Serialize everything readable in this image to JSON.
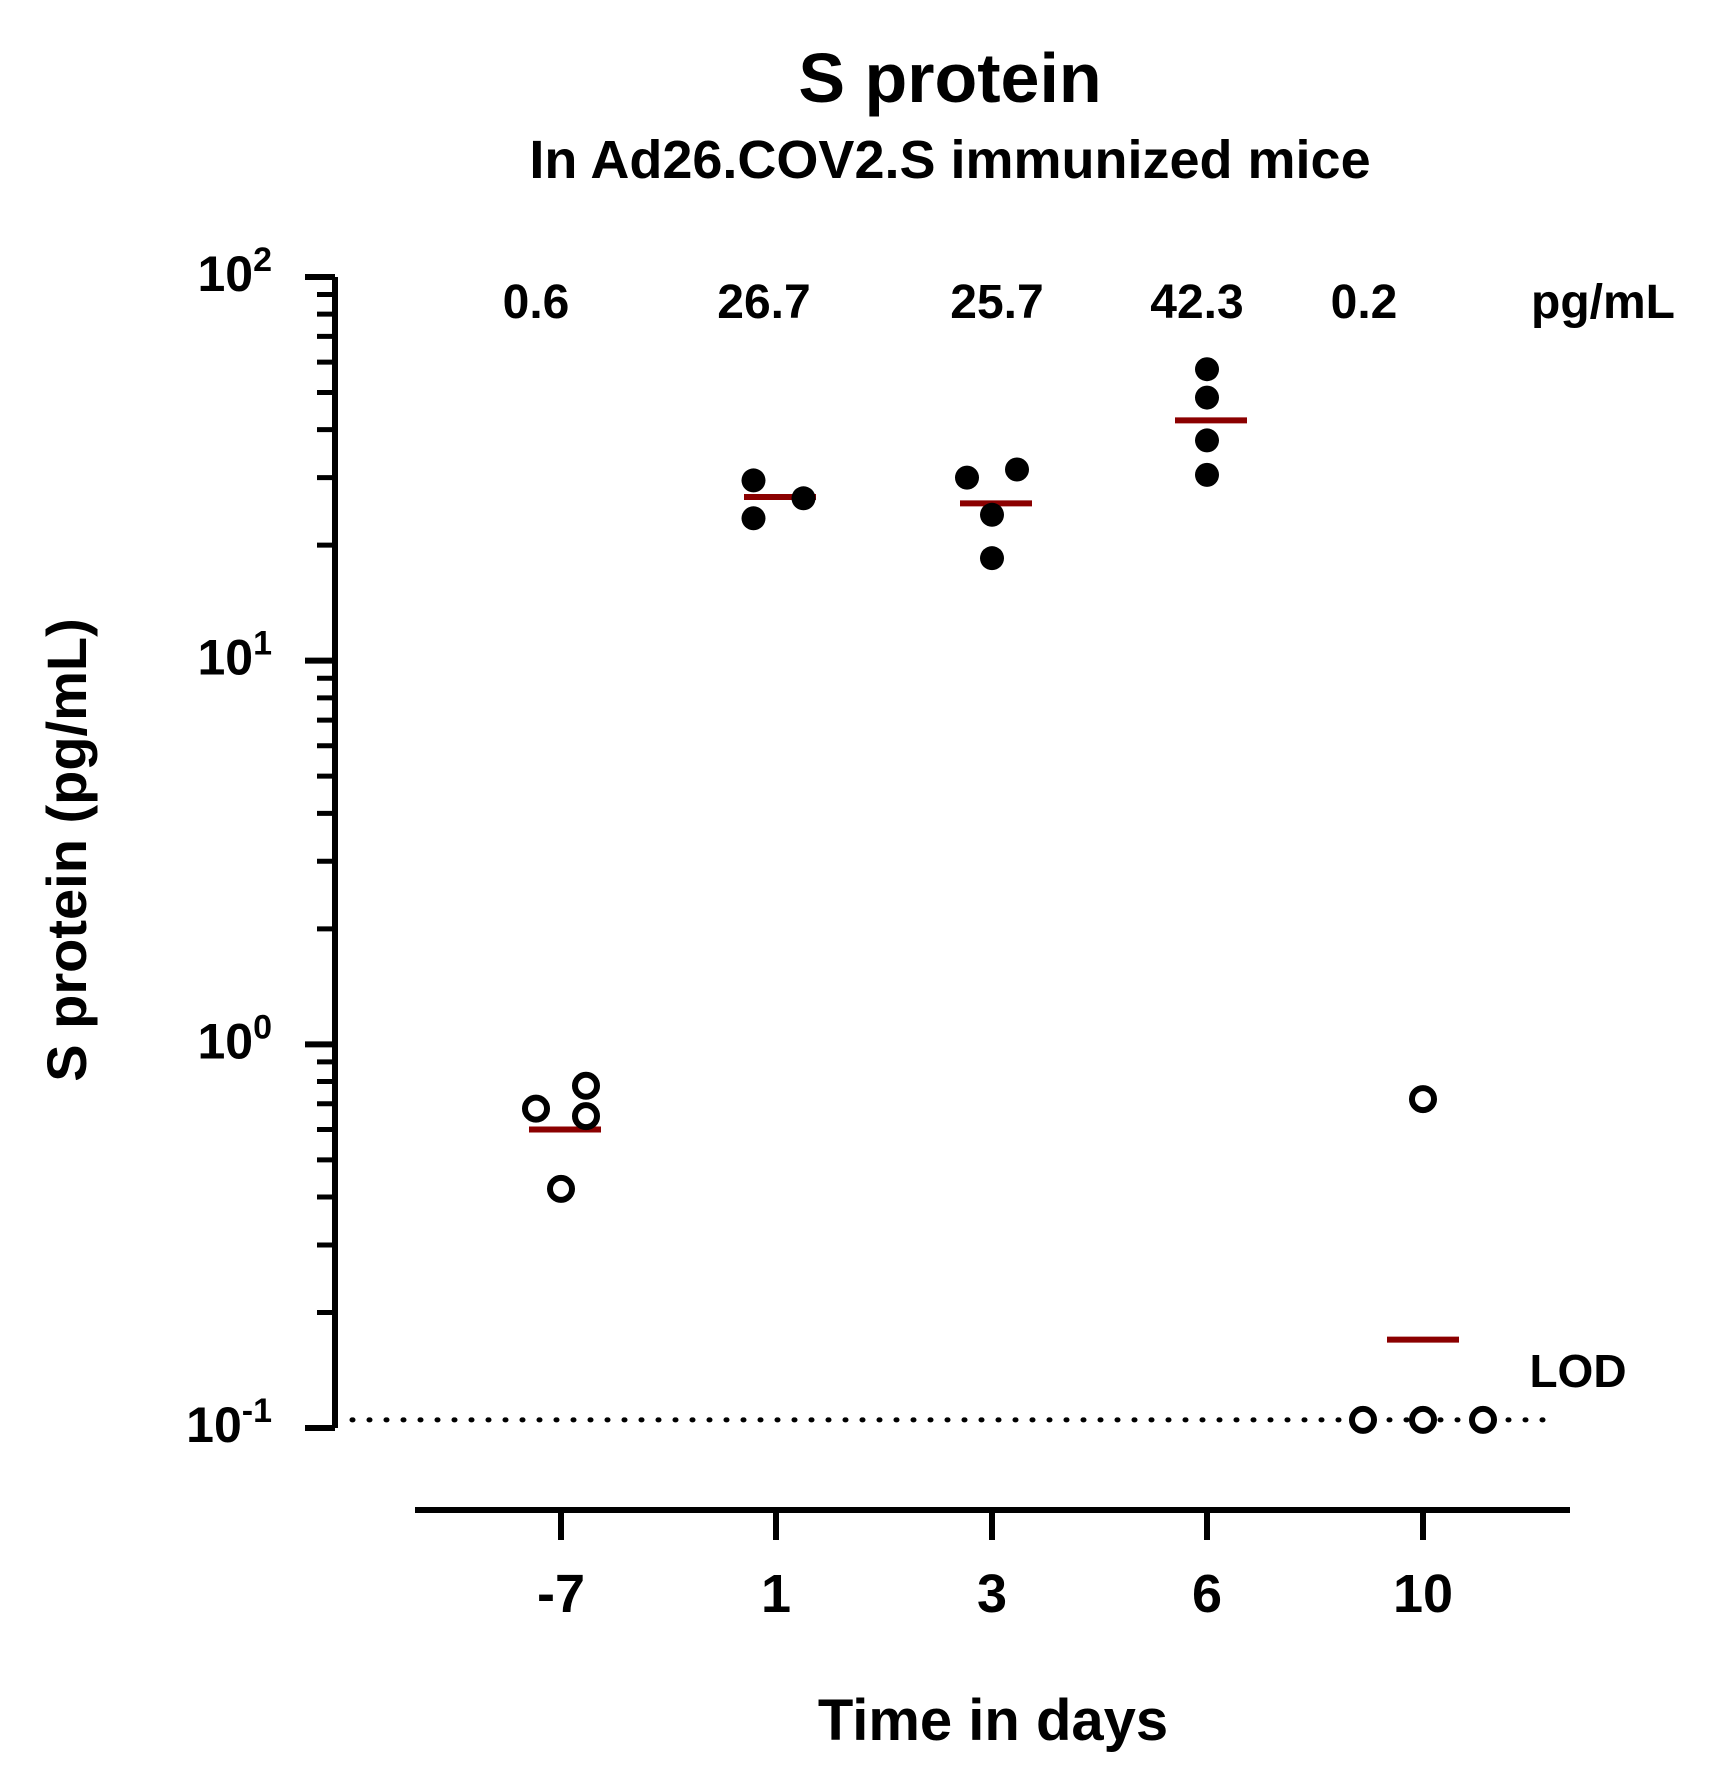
{
  "chart_data": {
    "type": "scatter",
    "title": "S protein",
    "subtitle": "In Ad26.COV2.S immunized mice",
    "xlabel": "Time in days",
    "ylabel": "S protein (pg/mL)",
    "yscale": "log10",
    "ylim": [
      0.1,
      100
    ],
    "yticks": [
      {
        "base": "10",
        "exp": "-1",
        "value": 0.1
      },
      {
        "base": "10",
        "exp": "0",
        "value": 1
      },
      {
        "base": "10",
        "exp": "1",
        "value": 10
      },
      {
        "base": "10",
        "exp": "2",
        "value": 100
      }
    ],
    "categories": [
      "-7",
      "1",
      "3",
      "6",
      "10"
    ],
    "mean_labels": [
      "0.6",
      "26.7",
      "25.7",
      "42.3",
      "0.2"
    ],
    "unit_label": "pg/mL",
    "lod_label": "LOD",
    "lod_value": 0.105,
    "mean_line_color": "#8b0000",
    "groups": [
      {
        "day": "-7",
        "mean": 0.6,
        "filled": false,
        "points": [
          {
            "y": 0.68,
            "j": -0.5
          },
          {
            "y": 0.42,
            "j": 0
          },
          {
            "y": 0.78,
            "j": 0.5
          },
          {
            "y": 0.65,
            "j": 0.5
          }
        ]
      },
      {
        "day": "1",
        "mean": 26.7,
        "filled": true,
        "points": [
          {
            "y": 29.5,
            "j": -0.45
          },
          {
            "y": 23.5,
            "j": -0.45
          },
          {
            "y": 26.5,
            "j": 0.55
          }
        ]
      },
      {
        "day": "3",
        "mean": 25.7,
        "filled": true,
        "points": [
          {
            "y": 30,
            "j": -0.5
          },
          {
            "y": 31.5,
            "j": 0.5
          },
          {
            "y": 24,
            "j": 0
          },
          {
            "y": 18.5,
            "j": 0
          }
        ]
      },
      {
        "day": "6",
        "mean": 42.3,
        "filled": true,
        "points": [
          {
            "y": 57.5,
            "j": 0
          },
          {
            "y": 48.5,
            "j": 0
          },
          {
            "y": 37.5,
            "j": 0
          },
          {
            "y": 30.5,
            "j": 0
          }
        ]
      },
      {
        "day": "10",
        "mean": 0.17,
        "filled": false,
        "points": [
          {
            "y": 0.72,
            "j": 0
          },
          {
            "y": 0.105,
            "j": -1.2
          },
          {
            "y": 0.105,
            "j": 0
          },
          {
            "y": 0.105,
            "j": 1.2
          }
        ]
      }
    ]
  }
}
